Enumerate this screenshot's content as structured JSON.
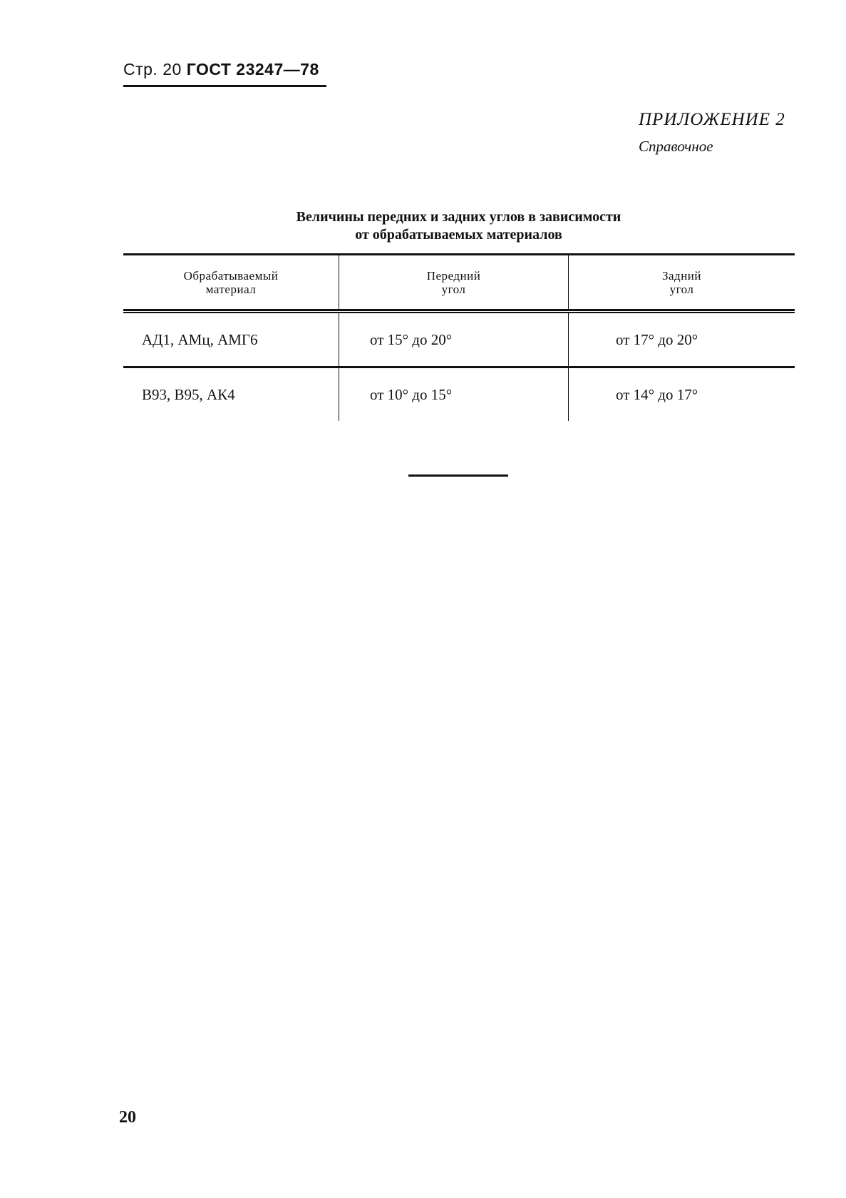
{
  "header": {
    "page_prefix": "Стр. 20",
    "standard": "ГОСТ 23247—78"
  },
  "appendix": {
    "label": "ПРИЛОЖЕНИЕ 2",
    "type": "Справочное"
  },
  "table": {
    "title_line1": "Величины передних и задних углов в зависимости",
    "title_line2": "от обрабатываемых материалов",
    "columns": [
      {
        "line1": "Обрабатываемый",
        "line2": "материал"
      },
      {
        "line1": "Передний",
        "line2": "угол"
      },
      {
        "line1": "Задний",
        "line2": "угол"
      }
    ],
    "rows": [
      [
        "АД1, АМц, АМГ6",
        "от 15° до 20°",
        "от 17° до 20°"
      ],
      [
        "В93, В95, АК4",
        "от 10° до 15°",
        "от 14° до 17°"
      ]
    ]
  },
  "footer": {
    "page_number": "20"
  }
}
